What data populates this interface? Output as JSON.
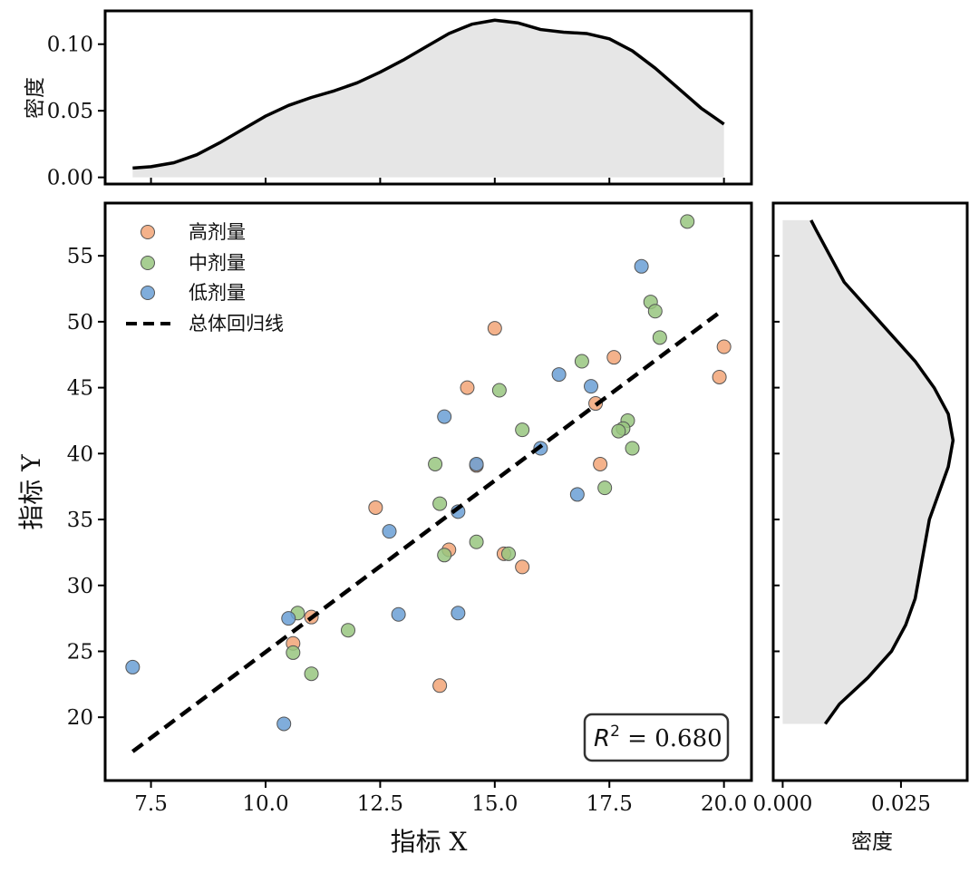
{
  "chart_data": [
    {
      "type": "area",
      "panel": "top-marginal",
      "ylabel": "密度",
      "xlim": [
        6.5,
        20.6
      ],
      "ylim": [
        -0.005,
        0.125
      ],
      "yticks": [
        0.0,
        0.05,
        0.1
      ],
      "ytick_labels": [
        "0.00",
        "0.05",
        "0.10"
      ],
      "xticks": [
        7.5,
        10.0,
        12.5,
        15.0,
        17.5,
        20.0
      ],
      "curve": {
        "x": [
          7.1,
          7.5,
          8.0,
          8.5,
          9.0,
          9.5,
          10.0,
          10.5,
          11.0,
          11.5,
          12.0,
          12.5,
          13.0,
          13.5,
          14.0,
          14.5,
          15.0,
          15.5,
          16.0,
          16.5,
          17.0,
          17.5,
          18.0,
          18.5,
          19.0,
          19.5,
          20.0
        ],
        "y": [
          0.007,
          0.008,
          0.011,
          0.017,
          0.026,
          0.036,
          0.046,
          0.054,
          0.06,
          0.065,
          0.071,
          0.079,
          0.088,
          0.098,
          0.108,
          0.115,
          0.118,
          0.116,
          0.111,
          0.109,
          0.108,
          0.104,
          0.095,
          0.082,
          0.067,
          0.052,
          0.04
        ]
      },
      "fill_color": "#e6e6e6",
      "line_color": "#000000"
    },
    {
      "type": "scatter",
      "panel": "main",
      "xlabel": "指标 X",
      "ylabel": "指标 Y",
      "xlim": [
        6.5,
        20.6
      ],
      "ylim": [
        15.2,
        59.0
      ],
      "xticks": [
        7.5,
        10.0,
        12.5,
        15.0,
        17.5,
        20.0
      ],
      "xtick_labels": [
        "7.5",
        "10.0",
        "12.5",
        "15.0",
        "17.5",
        "20.0"
      ],
      "yticks": [
        20,
        25,
        30,
        35,
        40,
        45,
        50,
        55
      ],
      "ytick_labels": [
        "20",
        "25",
        "30",
        "35",
        "40",
        "45",
        "50",
        "55"
      ],
      "grid": false,
      "legend_position": "top-left",
      "series": [
        {
          "name": "高剂量",
          "color": "#f2a477",
          "points": [
            [
              15.0,
              49.5
            ],
            [
              14.4,
              45.0
            ],
            [
              17.6,
              47.3
            ],
            [
              19.9,
              45.8
            ],
            [
              20.0,
              48.1
            ],
            [
              17.2,
              43.8
            ],
            [
              14.6,
              39.1
            ],
            [
              17.3,
              39.2
            ],
            [
              12.4,
              35.9
            ],
            [
              14.0,
              32.7
            ],
            [
              15.2,
              32.4
            ],
            [
              15.6,
              31.4
            ],
            [
              11.0,
              27.6
            ],
            [
              10.6,
              25.6
            ],
            [
              13.8,
              22.4
            ]
          ]
        },
        {
          "name": "中剂量",
          "color": "#98c67f",
          "points": [
            [
              19.2,
              57.6
            ],
            [
              18.4,
              51.5
            ],
            [
              18.5,
              50.8
            ],
            [
              18.6,
              48.8
            ],
            [
              16.9,
              47.0
            ],
            [
              15.1,
              44.8
            ],
            [
              15.6,
              41.8
            ],
            [
              17.9,
              42.5
            ],
            [
              17.8,
              41.9
            ],
            [
              17.7,
              41.7
            ],
            [
              18.0,
              40.4
            ],
            [
              13.7,
              39.2
            ],
            [
              17.4,
              37.4
            ],
            [
              13.8,
              36.2
            ],
            [
              14.6,
              33.3
            ],
            [
              15.3,
              32.4
            ],
            [
              13.9,
              32.3
            ],
            [
              10.7,
              27.9
            ],
            [
              11.8,
              26.6
            ],
            [
              10.6,
              24.9
            ],
            [
              11.0,
              23.3
            ]
          ]
        },
        {
          "name": "低剂量",
          "color": "#6a9fd5",
          "points": [
            [
              18.2,
              54.2
            ],
            [
              16.4,
              46.0
            ],
            [
              17.1,
              45.1
            ],
            [
              13.9,
              42.8
            ],
            [
              16.0,
              40.4
            ],
            [
              14.6,
              39.2
            ],
            [
              16.8,
              36.9
            ],
            [
              14.2,
              35.6
            ],
            [
              12.7,
              34.1
            ],
            [
              12.9,
              27.8
            ],
            [
              14.2,
              27.9
            ],
            [
              10.5,
              27.5
            ],
            [
              7.1,
              23.8
            ],
            [
              10.4,
              19.5
            ]
          ]
        }
      ],
      "regression": {
        "name": "总体回归线",
        "x": [
          7.1,
          19.9
        ],
        "y": [
          17.4,
          50.7
        ],
        "color": "#000000",
        "style": "dashed"
      },
      "annotation": {
        "symbol": "R",
        "superscript": "2",
        "text": " = 0.680"
      }
    },
    {
      "type": "area",
      "panel": "right-marginal",
      "xlabel": "密度",
      "xlim": [
        -0.002,
        0.039
      ],
      "ylim": [
        15.2,
        59.0
      ],
      "xticks": [
        0.0,
        0.025
      ],
      "xtick_labels": [
        "0.000",
        "0.025"
      ],
      "yticks": [
        20,
        25,
        30,
        35,
        40,
        45,
        50,
        55
      ],
      "curve": {
        "y": [
          19.5,
          21.0,
          23.0,
          25.0,
          27.0,
          29.0,
          31.0,
          33.0,
          35.0,
          37.0,
          39.0,
          41.0,
          43.0,
          45.0,
          47.0,
          49.0,
          51.0,
          53.0,
          55.0,
          57.0,
          57.7
        ],
        "x": [
          0.009,
          0.012,
          0.018,
          0.023,
          0.026,
          0.028,
          0.029,
          0.03,
          0.031,
          0.033,
          0.035,
          0.036,
          0.035,
          0.032,
          0.028,
          0.023,
          0.018,
          0.013,
          0.01,
          0.007,
          0.006
        ]
      },
      "fill_color": "#e6e6e6",
      "line_color": "#000000"
    }
  ]
}
